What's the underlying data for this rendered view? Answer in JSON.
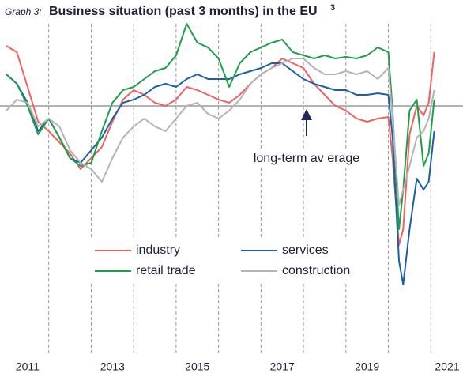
{
  "chart_data": {
    "type": "line",
    "title_prefix": "Graph 3:",
    "title": "Business situation (past 3 months) in the EU",
    "title_footnote": "3",
    "annotation": "long-term av erage",
    "reference_line": 0,
    "x": [
      2011,
      2011.25,
      2011.5,
      2011.75,
      2012,
      2012.25,
      2012.5,
      2012.75,
      2013,
      2013.25,
      2013.5,
      2013.75,
      2014,
      2014.25,
      2014.5,
      2014.75,
      2015,
      2015.25,
      2015.5,
      2015.75,
      2016,
      2016.25,
      2016.5,
      2016.75,
      2017,
      2017.25,
      2017.5,
      2017.75,
      2018,
      2018.25,
      2018.5,
      2018.75,
      2019,
      2019.25,
      2019.5,
      2019.75,
      2020,
      2020.1,
      2020.25,
      2020.35,
      2020.5,
      2020.67,
      2020.83,
      2020.95,
      2021.08
    ],
    "xlim": [
      2011,
      2021.2
    ],
    "ylim": [
      -7.65,
      2.6
    ],
    "xticks": [
      {
        "value": 2011.5,
        "label": "2011"
      },
      {
        "value": 2013.5,
        "label": "2013"
      },
      {
        "value": 2015.5,
        "label": "2015"
      },
      {
        "value": 2017.5,
        "label": "2017"
      },
      {
        "value": 2019.5,
        "label": "2019"
      },
      {
        "value": 2021.5,
        "label": "2021"
      }
    ],
    "x_gridlines": [
      2012,
      2013,
      2014,
      2015,
      2016,
      2017,
      2018,
      2019,
      2020,
      2021
    ],
    "series": [
      {
        "name": "industry",
        "color": "#f0625e",
        "values": [
          1.9,
          1.7,
          0.6,
          -0.5,
          -0.8,
          -1.15,
          -1.5,
          -2.0,
          -1.65,
          -1.3,
          -0.5,
          0.2,
          0.5,
          0.35,
          0.1,
          0,
          0.2,
          0.6,
          0.5,
          0.35,
          0.2,
          0.1,
          0.35,
          0.7,
          1.0,
          1.2,
          1.5,
          1.35,
          1.2,
          0.7,
          0.35,
          0,
          -0.15,
          -0.4,
          -0.5,
          -0.4,
          -0.35,
          -1.65,
          -4.4,
          -3.9,
          -0.9,
          0,
          -0.3,
          0.1,
          1.7
        ]
      },
      {
        "name": "services",
        "color": "#1a5fa8",
        "values": [
          1.0,
          0.7,
          0.1,
          -0.8,
          -0.4,
          -1.0,
          -1.65,
          -1.8,
          -1.4,
          -1.0,
          -0.4,
          0.1,
          0.2,
          0.35,
          0.6,
          0.7,
          0.6,
          0.85,
          1.0,
          0.85,
          0.85,
          0.85,
          1.0,
          1.1,
          1.2,
          1.35,
          1.35,
          1.1,
          0.85,
          0.7,
          0.6,
          0.5,
          0.5,
          0.35,
          0.35,
          0.4,
          0.35,
          -1.0,
          -4.9,
          -5.65,
          -3.9,
          -2.3,
          -2.65,
          -2.4,
          -0.8
        ]
      },
      {
        "name": "retail trade",
        "color": "#1e9e4a",
        "values": [
          1.0,
          0.7,
          0,
          -0.9,
          -0.4,
          -1.0,
          -1.65,
          -1.9,
          -1.8,
          -0.8,
          0.1,
          0.5,
          0.6,
          0.85,
          1.1,
          1.2,
          1.6,
          2.6,
          2.0,
          1.85,
          1.5,
          0.6,
          1.35,
          1.7,
          1.85,
          2.0,
          2.1,
          1.7,
          1.6,
          1.5,
          1.6,
          1.5,
          1.55,
          1.5,
          1.6,
          1.85,
          1.7,
          -0.15,
          -3.9,
          -2.65,
          -0.15,
          0.2,
          -1.9,
          -1.5,
          0.2
        ]
      },
      {
        "name": "construction",
        "color": "#b4b4b4",
        "values": [
          -0.15,
          0.2,
          0.1,
          -0.65,
          -0.4,
          -0.65,
          -1.4,
          -1.8,
          -2.0,
          -2.4,
          -1.65,
          -1.0,
          -0.65,
          -0.4,
          -0.65,
          -0.8,
          -0.4,
          0,
          0.1,
          -0.25,
          -0.4,
          -0.15,
          0.2,
          0.7,
          1.0,
          1.2,
          1.35,
          1.5,
          1.5,
          1.2,
          1.0,
          1.0,
          1.1,
          1.0,
          1.1,
          0.85,
          1.2,
          -0.4,
          -3.15,
          -2.65,
          -1.9,
          -1.0,
          -0.8,
          -0.4,
          0.5
        ]
      }
    ]
  }
}
